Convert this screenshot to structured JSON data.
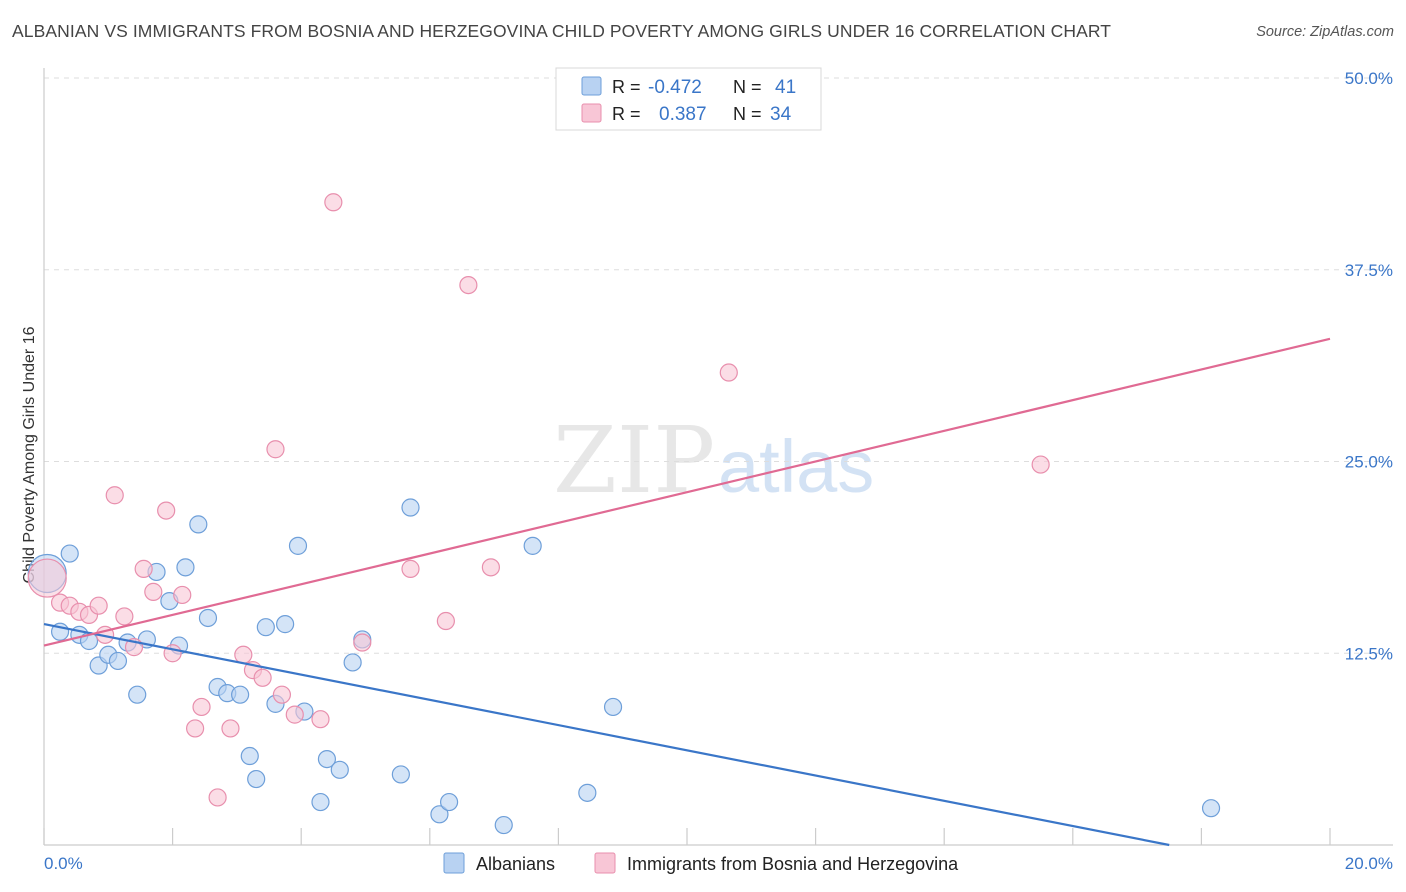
{
  "title": "ALBANIAN VS IMMIGRANTS FROM BOSNIA AND HERZEGOVINA CHILD POVERTY AMONG GIRLS UNDER 16 CORRELATION CHART",
  "source": "Source: ZipAtlas.com",
  "watermark": {
    "zip": "ZIP",
    "atlas": "atlas"
  },
  "colors": {
    "blue_fill": "#b8d2f2",
    "blue_stroke": "#6e9fd9",
    "blue_line": "#3a76c8",
    "pink_fill": "#f8c6d6",
    "pink_stroke": "#e88fad",
    "pink_line": "#e06a93",
    "grid": "#dddddd",
    "tick_label": "#3a76c8"
  },
  "legend": {
    "rows": [
      {
        "r_label": "R =",
        "r_value": "-0.472",
        "n_label": "N =",
        "n_value": "41",
        "series": "blue"
      },
      {
        "r_label": "R =",
        "r_value": "0.387",
        "n_label": "N =",
        "n_value": "34",
        "series": "pink"
      }
    ]
  },
  "chart_data": {
    "type": "scatter",
    "title": "ALBANIAN VS IMMIGRANTS FROM BOSNIA AND HERZEGOVINA CHILD POVERTY AMONG GIRLS UNDER 16 CORRELATION CHART",
    "xlabel": "",
    "ylabel": "Child Poverty Among Girls Under 16",
    "xlim": [
      0,
      20
    ],
    "ylim": [
      0,
      50
    ],
    "x_tick_labels": [
      "0.0%",
      "20.0%"
    ],
    "y_ticks": [
      12.5,
      25.0,
      37.5,
      50.0
    ],
    "y_tick_labels": [
      "12.5%",
      "25.0%",
      "37.5%",
      "50.0%"
    ],
    "grid": true,
    "legend_position": "bottom",
    "series": [
      {
        "name": "Albanians",
        "color": "blue",
        "trend": {
          "x0": 0,
          "y0": 14.4,
          "x1": 17.5,
          "y1": 0
        },
        "points": [
          {
            "x": 0.05,
            "y": 17.7,
            "big": true
          },
          {
            "x": 0.4,
            "y": 19.0
          },
          {
            "x": 0.25,
            "y": 13.9
          },
          {
            "x": 0.55,
            "y": 13.7
          },
          {
            "x": 0.7,
            "y": 13.3
          },
          {
            "x": 0.85,
            "y": 11.7
          },
          {
            "x": 1.0,
            "y": 12.4
          },
          {
            "x": 1.15,
            "y": 12.0
          },
          {
            "x": 1.3,
            "y": 13.2
          },
          {
            "x": 1.45,
            "y": 9.8
          },
          {
            "x": 1.6,
            "y": 13.4
          },
          {
            "x": 1.75,
            "y": 17.8
          },
          {
            "x": 1.95,
            "y": 15.9
          },
          {
            "x": 2.1,
            "y": 13.0
          },
          {
            "x": 2.2,
            "y": 18.1
          },
          {
            "x": 2.4,
            "y": 20.9
          },
          {
            "x": 2.55,
            "y": 14.8
          },
          {
            "x": 2.7,
            "y": 10.3
          },
          {
            "x": 2.85,
            "y": 9.9
          },
          {
            "x": 3.05,
            "y": 9.8
          },
          {
            "x": 3.2,
            "y": 5.8
          },
          {
            "x": 3.3,
            "y": 4.3
          },
          {
            "x": 3.45,
            "y": 14.2
          },
          {
            "x": 3.6,
            "y": 9.2
          },
          {
            "x": 3.75,
            "y": 14.4
          },
          {
            "x": 3.95,
            "y": 19.5
          },
          {
            "x": 4.05,
            "y": 8.7
          },
          {
            "x": 4.3,
            "y": 2.8
          },
          {
            "x": 4.4,
            "y": 5.6
          },
          {
            "x": 4.6,
            "y": 4.9
          },
          {
            "x": 4.8,
            "y": 11.9
          },
          {
            "x": 4.95,
            "y": 13.4
          },
          {
            "x": 5.55,
            "y": 4.6
          },
          {
            "x": 5.7,
            "y": 22.0
          },
          {
            "x": 6.15,
            "y": 2.0
          },
          {
            "x": 6.3,
            "y": 2.8
          },
          {
            "x": 7.15,
            "y": 1.3
          },
          {
            "x": 7.6,
            "y": 19.5
          },
          {
            "x": 8.45,
            "y": 3.4
          },
          {
            "x": 8.85,
            "y": 9.0
          },
          {
            "x": 18.15,
            "y": 2.4
          }
        ]
      },
      {
        "name": "Immigrants from Bosnia and Herzegovina",
        "color": "pink",
        "trend": {
          "x0": 0,
          "y0": 13.0,
          "x1": 20,
          "y1": 33.0
        },
        "points": [
          {
            "x": 0.05,
            "y": 17.4,
            "big": true
          },
          {
            "x": 0.25,
            "y": 15.8
          },
          {
            "x": 0.4,
            "y": 15.6
          },
          {
            "x": 0.55,
            "y": 15.2
          },
          {
            "x": 0.7,
            "y": 15.0
          },
          {
            "x": 0.85,
            "y": 15.6
          },
          {
            "x": 0.95,
            "y": 13.7
          },
          {
            "x": 1.1,
            "y": 22.8
          },
          {
            "x": 1.25,
            "y": 14.9
          },
          {
            "x": 1.4,
            "y": 12.9
          },
          {
            "x": 1.55,
            "y": 18.0
          },
          {
            "x": 1.7,
            "y": 16.5
          },
          {
            "x": 1.9,
            "y": 21.8
          },
          {
            "x": 2.0,
            "y": 12.5
          },
          {
            "x": 2.15,
            "y": 16.3
          },
          {
            "x": 2.35,
            "y": 7.6
          },
          {
            "x": 2.45,
            "y": 9.0
          },
          {
            "x": 2.7,
            "y": 3.1
          },
          {
            "x": 2.9,
            "y": 7.6
          },
          {
            "x": 3.1,
            "y": 12.4
          },
          {
            "x": 3.25,
            "y": 11.4
          },
          {
            "x": 3.4,
            "y": 10.9
          },
          {
            "x": 3.6,
            "y": 25.8
          },
          {
            "x": 3.7,
            "y": 9.8
          },
          {
            "x": 3.9,
            "y": 8.5
          },
          {
            "x": 4.3,
            "y": 8.2
          },
          {
            "x": 4.5,
            "y": 41.9
          },
          {
            "x": 4.95,
            "y": 13.2
          },
          {
            "x": 5.7,
            "y": 18.0
          },
          {
            "x": 6.25,
            "y": 14.6
          },
          {
            "x": 6.6,
            "y": 36.5
          },
          {
            "x": 6.95,
            "y": 18.1
          },
          {
            "x": 10.65,
            "y": 30.8
          },
          {
            "x": 15.5,
            "y": 24.8
          }
        ]
      }
    ]
  }
}
